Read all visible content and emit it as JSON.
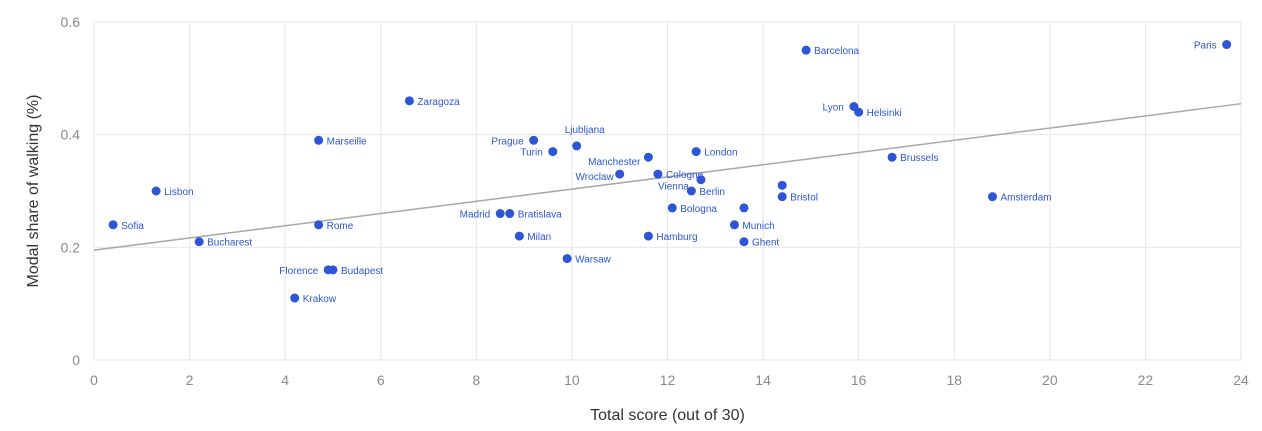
{
  "chart_data": {
    "type": "scatter",
    "title": "",
    "xlabel": "Total score (out of 30)",
    "ylabel": "Modal share of walking (%)",
    "xlim": [
      0,
      24
    ],
    "ylim": [
      0,
      0.6
    ],
    "x_ticks": [
      0,
      2,
      4,
      6,
      8,
      10,
      12,
      14,
      16,
      18,
      20,
      22,
      24
    ],
    "y_ticks": [
      0,
      0.2,
      0.4,
      0.6
    ],
    "x_tick_labels": [
      "0",
      "2",
      "4",
      "6",
      "8",
      "10",
      "12",
      "14",
      "16",
      "18",
      "20",
      "22",
      "24"
    ],
    "y_tick_labels": [
      "0",
      "0.2",
      "0.4",
      "0.6"
    ],
    "grid": true,
    "point_color": "#2c56d6",
    "trendline_color": "#a8a8a8",
    "trendline": {
      "x": [
        0,
        24
      ],
      "y": [
        0.195,
        0.455
      ]
    },
    "points": [
      {
        "label": "Paris",
        "x": 23.7,
        "y": 0.56
      },
      {
        "label": "Barcelona",
        "x": 14.9,
        "y": 0.55
      },
      {
        "label": "Lyon",
        "x": 15.9,
        "y": 0.45
      },
      {
        "label": "Helsinki",
        "x": 16.0,
        "y": 0.44
      },
      {
        "label": "Zaragoza",
        "x": 6.6,
        "y": 0.46
      },
      {
        "label": "Marseille",
        "x": 4.7,
        "y": 0.39
      },
      {
        "label": "Prague",
        "x": 9.2,
        "y": 0.39
      },
      {
        "label": "Ljubljana",
        "x": 10.1,
        "y": 0.38
      },
      {
        "label": "Turin",
        "x": 9.6,
        "y": 0.37
      },
      {
        "label": "London",
        "x": 12.6,
        "y": 0.37
      },
      {
        "label": "Manchester",
        "x": 11.6,
        "y": 0.36
      },
      {
        "label": "Brussels",
        "x": 16.7,
        "y": 0.36
      },
      {
        "label": "Wroclaw",
        "x": 11.0,
        "y": 0.33
      },
      {
        "label": "Cologne",
        "x": 11.8,
        "y": 0.33
      },
      {
        "label": "Vienna",
        "x": 12.7,
        "y": 0.32
      },
      {
        "label": "Berlin",
        "x": 12.5,
        "y": 0.3
      },
      {
        "label": "Lisbon",
        "x": 1.3,
        "y": 0.3
      },
      {
        "label": "Bristol",
        "x": 14.4,
        "y": 0.29
      },
      {
        "label": "Amsterdam",
        "x": 18.8,
        "y": 0.29
      },
      {
        "label": "Bologna",
        "x": 12.1,
        "y": 0.27
      },
      {
        "label": "Madrid",
        "x": 8.5,
        "y": 0.26
      },
      {
        "label": "Bratislava",
        "x": 8.7,
        "y": 0.26
      },
      {
        "label": "Sofia",
        "x": 0.4,
        "y": 0.24
      },
      {
        "label": "Rome",
        "x": 4.7,
        "y": 0.24
      },
      {
        "label": "Munich",
        "x": 13.4,
        "y": 0.24
      },
      {
        "label": "Milan",
        "x": 8.9,
        "y": 0.22
      },
      {
        "label": "Hamburg",
        "x": 11.6,
        "y": 0.22
      },
      {
        "label": "Bucharest",
        "x": 2.2,
        "y": 0.21
      },
      {
        "label": "Ghent",
        "x": 13.6,
        "y": 0.21
      },
      {
        "label": "Warsaw",
        "x": 9.9,
        "y": 0.18
      },
      {
        "label": "Florence",
        "x": 4.9,
        "y": 0.16
      },
      {
        "label": "Budapest",
        "x": 5.0,
        "y": 0.16
      },
      {
        "label": "Krakow",
        "x": 4.2,
        "y": 0.11
      },
      {
        "label": "",
        "x": 13.6,
        "y": 0.27
      },
      {
        "label": "",
        "x": 14.4,
        "y": 0.31
      }
    ]
  }
}
